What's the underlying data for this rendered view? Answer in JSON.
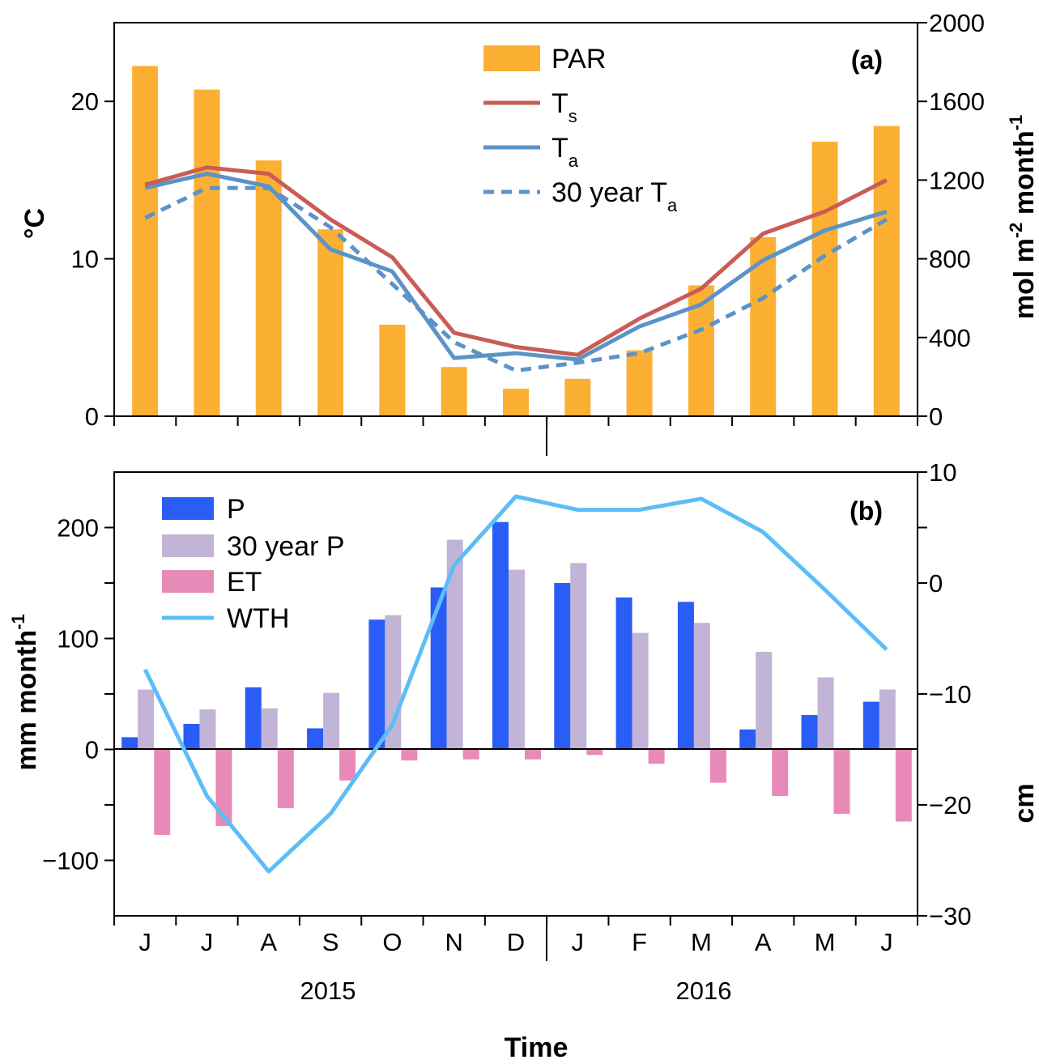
{
  "colors": {
    "par": "#fbb034",
    "ts": "#c95c55",
    "ta": "#5b93c9",
    "ta30": "#5b93c9",
    "p": "#2a5cf6",
    "p30": "#c2b4d6",
    "et": "#e88ab8",
    "wth": "#5dbdf7"
  },
  "chart_data": [
    {
      "type": "bar+line",
      "panel_label": "(a)",
      "ylabel_left": "°C",
      "ylabel_right_main": "mol m",
      "ylabel_right_sup1": "-2",
      "ylabel_right_mid": " month",
      "ylabel_right_sup2": "-1",
      "ylim_left": [
        0,
        25
      ],
      "ylim_right": [
        0,
        2000
      ],
      "yticks_left": [
        "0",
        "10",
        "20"
      ],
      "yticks_right": [
        "0",
        "400",
        "800",
        "1200",
        "1600",
        "2000"
      ],
      "legend_position": "top-center",
      "legend": [
        {
          "key": "PAR",
          "label": "PAR",
          "sub": ""
        },
        {
          "key": "Ts",
          "label": "T",
          "sub": "s"
        },
        {
          "key": "Ta",
          "label": "T",
          "sub": "a"
        },
        {
          "key": "Ta30",
          "label": "30 year T",
          "sub": "a"
        }
      ],
      "categories": [
        "J",
        "J",
        "A",
        "S",
        "O",
        "N",
        "D",
        "J",
        "F",
        "M",
        "A",
        "M",
        "J"
      ],
      "series": [
        {
          "name": "PAR",
          "type": "bar",
          "axis": "right",
          "values": [
            1780,
            1660,
            1300,
            950,
            465,
            250,
            140,
            190,
            335,
            665,
            910,
            1395,
            1475
          ]
        },
        {
          "name": "Ts",
          "type": "line",
          "axis": "left",
          "values": [
            14.7,
            15.8,
            15.4,
            12.5,
            10.1,
            5.3,
            4.4,
            3.9,
            6.2,
            8.1,
            11.6,
            13.0,
            15.0
          ]
        },
        {
          "name": "Ta",
          "type": "line",
          "axis": "left",
          "values": [
            14.5,
            15.4,
            14.6,
            10.6,
            9.2,
            3.7,
            4.0,
            3.6,
            5.7,
            7.1,
            9.9,
            11.8,
            13.0
          ]
        },
        {
          "name": "30 year Ta",
          "type": "dashed-line",
          "axis": "left",
          "values": [
            12.6,
            14.5,
            14.5,
            12.0,
            8.4,
            4.7,
            2.9,
            3.4,
            4.0,
            5.5,
            7.5,
            10.2,
            12.5
          ]
        }
      ]
    },
    {
      "type": "bar+line",
      "panel_label": "(b)",
      "ylabel_left_main": "mm month",
      "ylabel_left_sup": "-1",
      "ylabel_right": "cm",
      "ylim_left": [
        -150,
        250
      ],
      "ylim_right": [
        -30,
        10
      ],
      "yticks_left": [
        "−100",
        "0",
        "100",
        "200"
      ],
      "yticks_right": [
        "−30",
        "−20",
        "−10",
        "0",
        "10"
      ],
      "legend_position": "top-left",
      "legend": [
        {
          "key": "P",
          "label": "P"
        },
        {
          "key": "P30",
          "label": "30 year P"
        },
        {
          "key": "ET",
          "label": "ET"
        },
        {
          "key": "WTH",
          "label": "WTH"
        }
      ],
      "categories": [
        "J",
        "J",
        "A",
        "S",
        "O",
        "N",
        "D",
        "J",
        "F",
        "M",
        "A",
        "M",
        "J"
      ],
      "xlabel": "Time",
      "years": [
        "2015",
        "2016"
      ],
      "series": [
        {
          "name": "P",
          "type": "bar",
          "axis": "left",
          "values": [
            11,
            23,
            56,
            19,
            117,
            146,
            205,
            150,
            137,
            133,
            18,
            31,
            43
          ]
        },
        {
          "name": "30 year P",
          "type": "bar",
          "axis": "left",
          "values": [
            54,
            36,
            37,
            51,
            121,
            189,
            162,
            168,
            105,
            114,
            88,
            65,
            54
          ]
        },
        {
          "name": "ET",
          "type": "bar",
          "axis": "left",
          "values": [
            -77,
            -69,
            -53,
            -28,
            -10,
            -9,
            -9,
            -5,
            -13,
            -30,
            -42,
            -58,
            -65
          ]
        },
        {
          "name": "WTH",
          "type": "line",
          "axis": "right",
          "values": [
            -7.8,
            -19.2,
            -26.0,
            -20.8,
            -12.8,
            1.6,
            7.8,
            6.6,
            6.6,
            7.6,
            4.6,
            -0.6,
            -6.0
          ]
        }
      ]
    }
  ]
}
